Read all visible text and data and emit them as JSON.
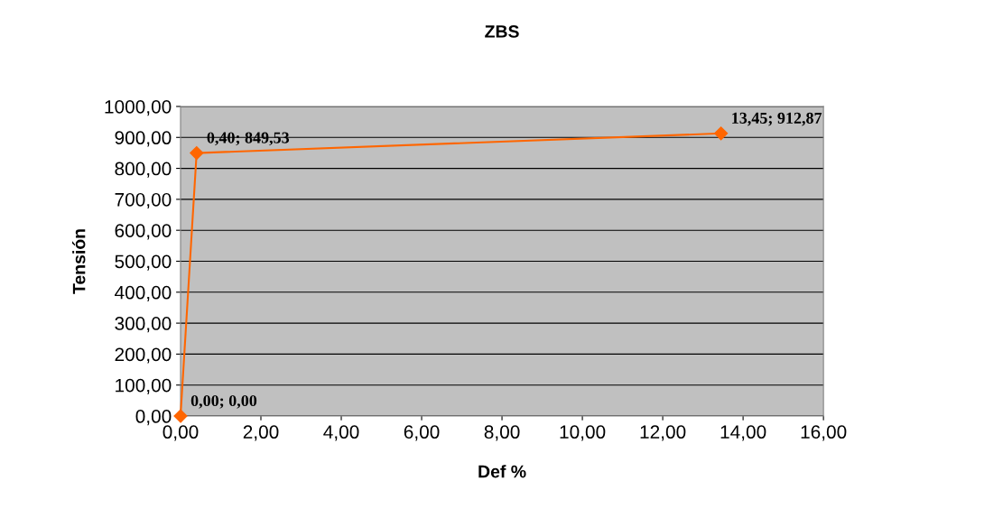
{
  "chart_data": {
    "type": "line",
    "title": "ZBS",
    "xlabel": "Def %",
    "ylabel": "Tensión",
    "x": [
      0.0,
      0.4,
      13.45
    ],
    "series": [
      {
        "color": "#ff6600",
        "values": [
          0.0,
          849.53,
          912.87
        ],
        "value_labels": [
          "0,00; 0,00",
          "0,40; 849,53",
          "13,45; 912,87"
        ]
      }
    ],
    "marker": "diamond",
    "line_style": "solid",
    "grid": "y",
    "xlim": [
      0,
      16
    ],
    "xticks": [
      {
        "value": 0,
        "label": "0,00"
      },
      {
        "value": 2,
        "label": "2,00"
      },
      {
        "value": 4,
        "label": "4,00"
      },
      {
        "value": 6,
        "label": "6,00"
      },
      {
        "value": 8,
        "label": "8,00"
      },
      {
        "value": 10,
        "label": "10,00"
      },
      {
        "value": 12,
        "label": "12,00"
      },
      {
        "value": 14,
        "label": "14,00"
      },
      {
        "value": 16,
        "label": "16,00"
      }
    ],
    "ylim": [
      0,
      1000
    ],
    "yticks": [
      {
        "value": 0,
        "label": "0,00"
      },
      {
        "value": 100,
        "label": "100,00"
      },
      {
        "value": 200,
        "label": "200,00"
      },
      {
        "value": 300,
        "label": "300,00"
      },
      {
        "value": 400,
        "label": "400,00"
      },
      {
        "value": 500,
        "label": "500,00"
      },
      {
        "value": 600,
        "label": "600,00"
      },
      {
        "value": 700,
        "label": "700,00"
      },
      {
        "value": 800,
        "label": "800,00"
      },
      {
        "value": 900,
        "label": "900,00"
      },
      {
        "value": 1000,
        "label": "1000,00"
      }
    ]
  }
}
